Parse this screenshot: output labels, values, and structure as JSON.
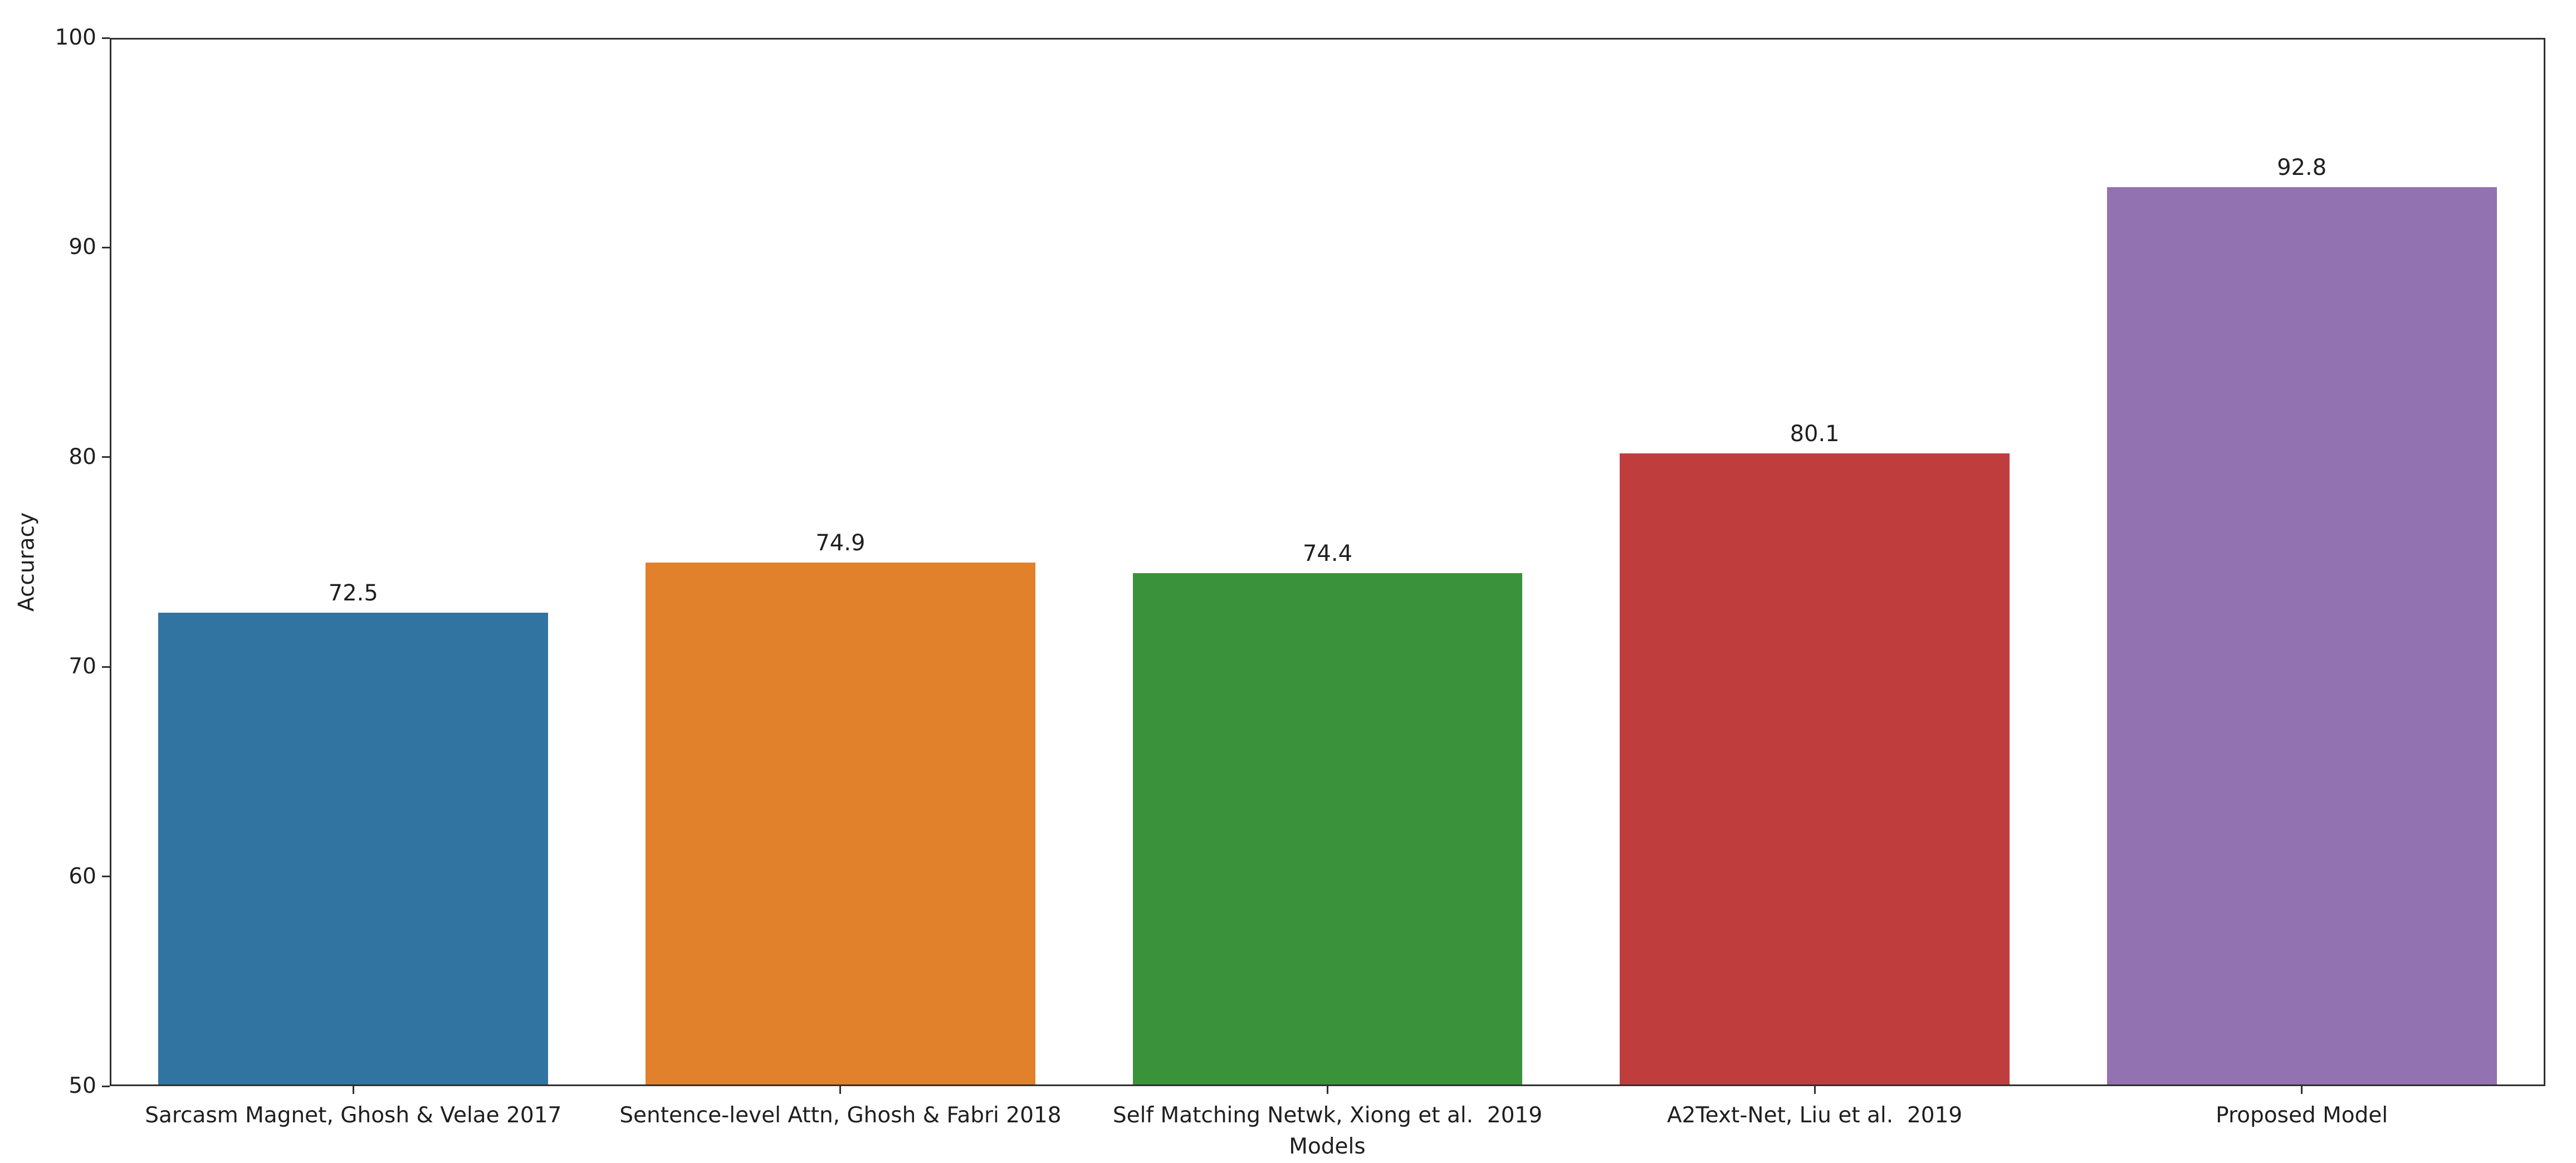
{
  "chart_data": {
    "type": "bar",
    "title": "",
    "xlabel": "Models",
    "ylabel": "Accuracy",
    "categories": [
      "Sarcasm Magnet, Ghosh & Velae 2017",
      "Sentence-level Attn, Ghosh & Fabri 2018",
      "Self Matching Netwk, Xiong et al.  2019",
      "A2Text-Net, Liu et al.  2019",
      "Proposed Model"
    ],
    "values": [
      72.5,
      74.9,
      74.4,
      80.1,
      92.8
    ],
    "bar_labels": [
      "72.5",
      "74.9",
      "74.4",
      "80.1",
      "92.8"
    ],
    "bar_colors": [
      "#3274a1",
      "#e1812c",
      "#3a923a",
      "#c03d3e",
      "#9372b2"
    ],
    "ylim": [
      50,
      100
    ],
    "yticks": [
      50,
      60,
      70,
      80,
      90,
      100
    ],
    "grid": false,
    "legend": "none",
    "axis_color": "#303030",
    "text_color": "#1f1f1f",
    "background_color": "#ffffff",
    "bar_width_fraction": 0.8
  }
}
